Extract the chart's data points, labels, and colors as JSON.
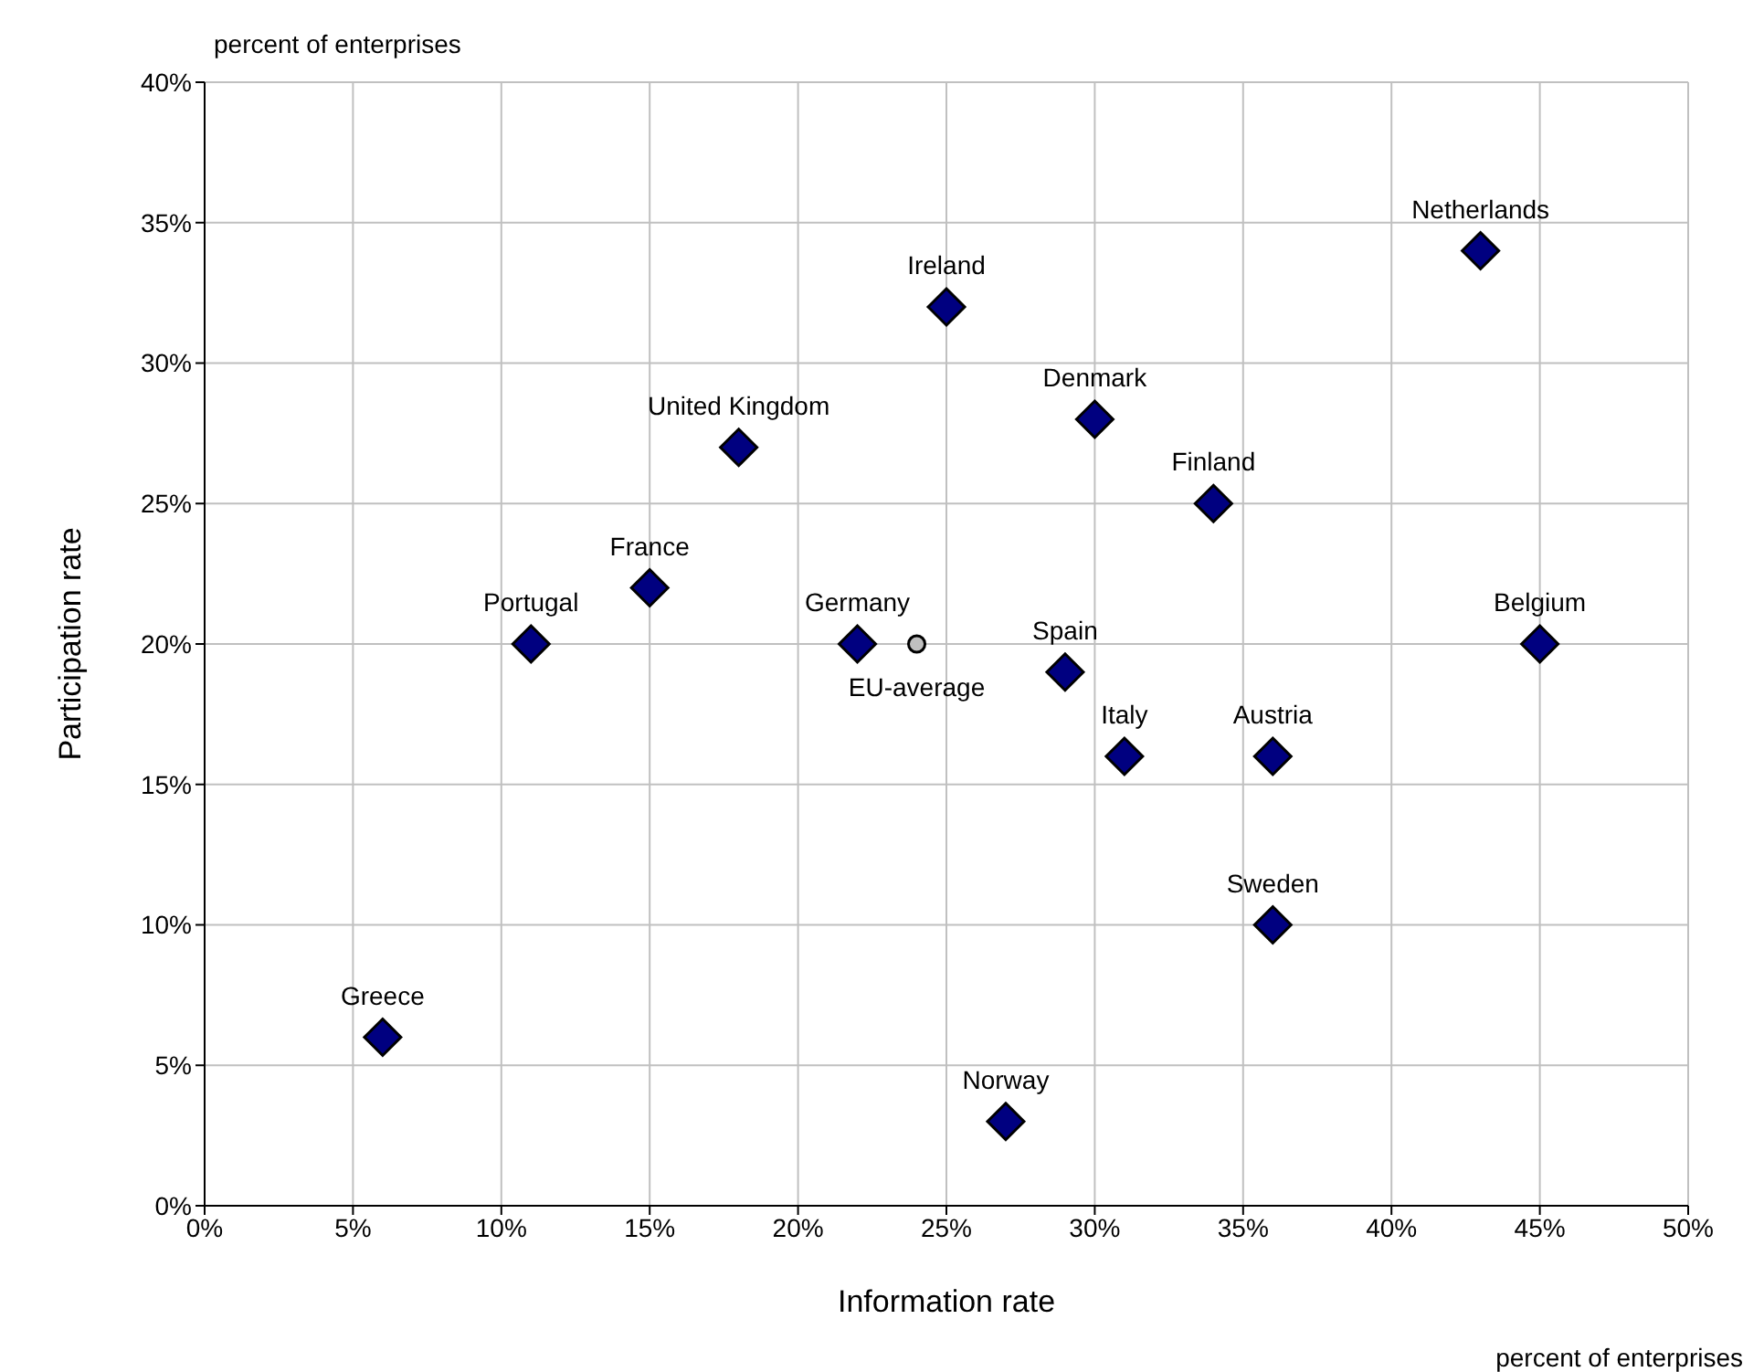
{
  "chart_data": {
    "type": "scatter",
    "xlabel": "Information rate",
    "ylabel": "Participation rate",
    "xlim": [
      0,
      50
    ],
    "ylim": [
      0,
      40
    ],
    "xticks": [
      {
        "value": 0,
        "label": "0%"
      },
      {
        "value": 5,
        "label": "5%"
      },
      {
        "value": 10,
        "label": "10%"
      },
      {
        "value": 15,
        "label": "15%"
      },
      {
        "value": 20,
        "label": "20%"
      },
      {
        "value": 25,
        "label": "25%"
      },
      {
        "value": 30,
        "label": "30%"
      },
      {
        "value": 35,
        "label": "35%"
      },
      {
        "value": 40,
        "label": "40%"
      },
      {
        "value": 45,
        "label": "45%"
      },
      {
        "value": 50,
        "label": "50%"
      }
    ],
    "yticks": [
      {
        "value": 0,
        "label": "0%"
      },
      {
        "value": 5,
        "label": "5%"
      },
      {
        "value": 10,
        "label": "10%"
      },
      {
        "value": 15,
        "label": "15%"
      },
      {
        "value": 20,
        "label": "20%"
      },
      {
        "value": 25,
        "label": "25%"
      },
      {
        "value": 30,
        "label": "30%"
      },
      {
        "value": 35,
        "label": "35%"
      },
      {
        "value": 40,
        "label": "40%"
      }
    ],
    "grid": true,
    "legend": false,
    "series": [
      {
        "color": "#000080",
        "marker": "diamond",
        "x": [
          6,
          11,
          15,
          18,
          22,
          25,
          27,
          29,
          30,
          31,
          34,
          36,
          36,
          43,
          45
        ],
        "values": [
          6,
          20,
          22,
          27,
          20,
          32,
          3,
          19,
          28,
          16,
          25,
          16,
          10,
          34,
          20
        ]
      },
      {
        "name": "EU-average",
        "color": "#c0c0c0",
        "marker": "circle",
        "x": [
          24
        ],
        "values": [
          20
        ]
      }
    ],
    "annotations": [
      "percent of enterprises",
      "percent of enterprises",
      {
        "text": "Greece",
        "x": 6,
        "y": 6
      },
      {
        "text": "Portugal",
        "x": 11,
        "y": 20
      },
      {
        "text": "France",
        "x": 15,
        "y": 22
      },
      {
        "text": "United Kingdom",
        "x": 18,
        "y": 27
      },
      {
        "text": "Germany",
        "x": 22,
        "y": 20
      },
      {
        "text": "Ireland",
        "x": 25,
        "y": 32
      },
      {
        "text": "Norway",
        "x": 27,
        "y": 3
      },
      {
        "text": "Spain",
        "x": 29,
        "y": 19
      },
      {
        "text": "Denmark",
        "x": 30,
        "y": 28
      },
      {
        "text": "Italy",
        "x": 31,
        "y": 16
      },
      {
        "text": "Finland",
        "x": 34,
        "y": 25
      },
      {
        "text": "Austria",
        "x": 36,
        "y": 16
      },
      {
        "text": "Sweden",
        "x": 36,
        "y": 10
      },
      {
        "text": "Netherlands",
        "x": 43,
        "y": 34
      },
      {
        "text": "Belgium",
        "x": 45,
        "y": 20
      }
    ]
  }
}
